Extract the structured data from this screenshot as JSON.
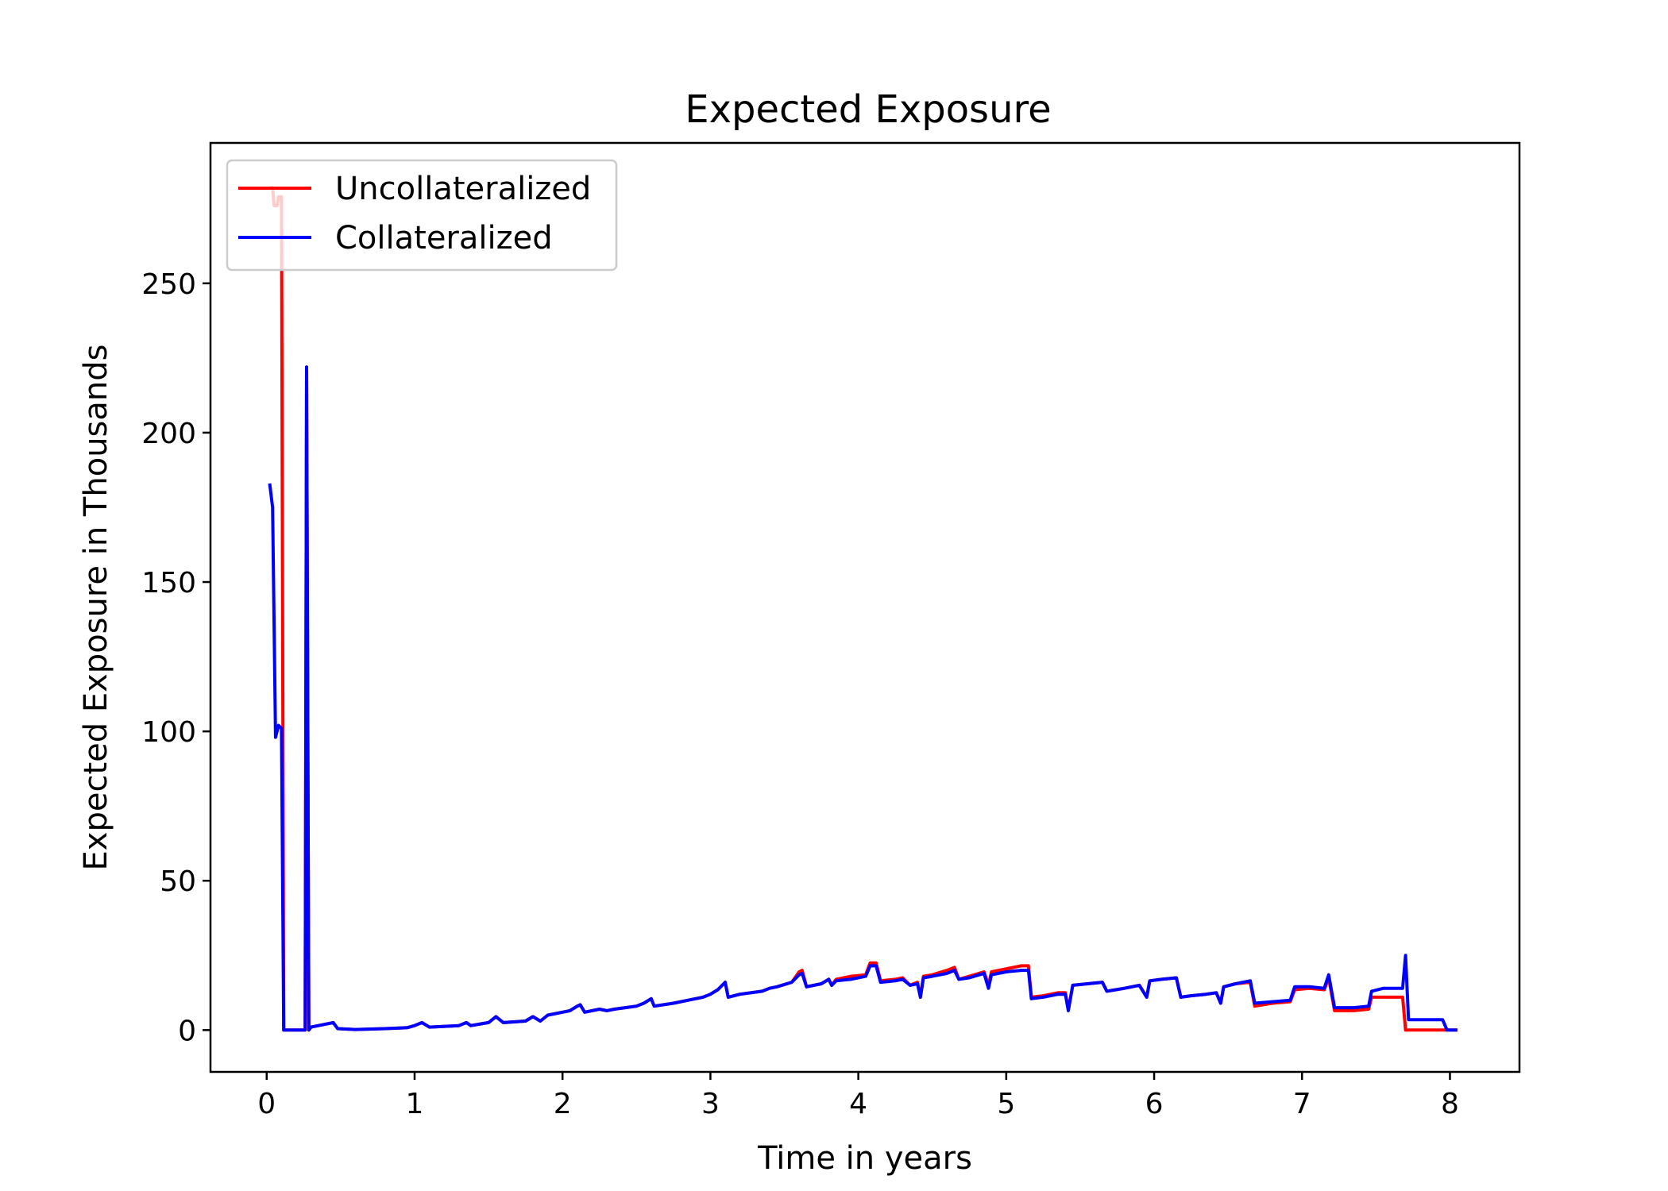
{
  "chart_data": {
    "type": "line",
    "title": "Expected Exposure",
    "xlabel": "Time in years",
    "ylabel": "Expected Exposure in Thousands",
    "xlim": [
      -0.38,
      8.47
    ],
    "ylim": [
      -14,
      297
    ],
    "xticks": [
      0,
      1,
      2,
      3,
      4,
      5,
      6,
      7,
      8
    ],
    "yticks": [
      0,
      50,
      100,
      150,
      200,
      250
    ],
    "grid": false,
    "legend_position": "upper left",
    "series": [
      {
        "name": "Uncollateralized",
        "color": "#ff0000",
        "points": [
          [
            0.02,
            282
          ],
          [
            0.04,
            282
          ],
          [
            0.05,
            276
          ],
          [
            0.07,
            276
          ],
          [
            0.08,
            279
          ],
          [
            0.09,
            279
          ],
          [
            0.1,
            279
          ],
          [
            0.115,
            0
          ],
          [
            0.25,
            0
          ],
          [
            0.26,
            0
          ],
          [
            0.27,
            222
          ],
          [
            0.285,
            0
          ],
          [
            0.3,
            1
          ],
          [
            0.35,
            1.5
          ],
          [
            0.4,
            2
          ],
          [
            0.45,
            2.5
          ],
          [
            0.48,
            0.5
          ],
          [
            0.6,
            0.2
          ],
          [
            0.8,
            0.5
          ],
          [
            0.95,
            0.8
          ],
          [
            1.0,
            1.5
          ],
          [
            1.05,
            2.5
          ],
          [
            1.1,
            1
          ],
          [
            1.3,
            1.5
          ],
          [
            1.35,
            2.5
          ],
          [
            1.38,
            1.5
          ],
          [
            1.5,
            2.5
          ],
          [
            1.55,
            4.5
          ],
          [
            1.6,
            2.5
          ],
          [
            1.75,
            3
          ],
          [
            1.8,
            4.5
          ],
          [
            1.85,
            3
          ],
          [
            1.9,
            5
          ],
          [
            2.0,
            6
          ],
          [
            2.05,
            6.5
          ],
          [
            2.1,
            8
          ],
          [
            2.12,
            8.5
          ],
          [
            2.15,
            6
          ],
          [
            2.25,
            7
          ],
          [
            2.3,
            6.5
          ],
          [
            2.35,
            7
          ],
          [
            2.5,
            8
          ],
          [
            2.55,
            9
          ],
          [
            2.6,
            10.5
          ],
          [
            2.62,
            8
          ],
          [
            2.75,
            9
          ],
          [
            2.85,
            10
          ],
          [
            2.95,
            11
          ],
          [
            3.0,
            12
          ],
          [
            3.05,
            13.5
          ],
          [
            3.1,
            16
          ],
          [
            3.12,
            11
          ],
          [
            3.2,
            12
          ],
          [
            3.35,
            13
          ],
          [
            3.4,
            14
          ],
          [
            3.45,
            14.5
          ],
          [
            3.55,
            16
          ],
          [
            3.6,
            19.5
          ],
          [
            3.62,
            20
          ],
          [
            3.65,
            14.5
          ],
          [
            3.75,
            15.5
          ],
          [
            3.8,
            17
          ],
          [
            3.82,
            15
          ],
          [
            3.85,
            17
          ],
          [
            3.95,
            18
          ],
          [
            4.05,
            18.5
          ],
          [
            4.08,
            22.5
          ],
          [
            4.12,
            22.5
          ],
          [
            4.15,
            16.5
          ],
          [
            4.25,
            17
          ],
          [
            4.3,
            17.5
          ],
          [
            4.35,
            15
          ],
          [
            4.4,
            16
          ],
          [
            4.42,
            11
          ],
          [
            4.44,
            18
          ],
          [
            4.5,
            18.5
          ],
          [
            4.6,
            20
          ],
          [
            4.65,
            21
          ],
          [
            4.68,
            17
          ],
          [
            4.75,
            18
          ],
          [
            4.85,
            19.5
          ],
          [
            4.88,
            15
          ],
          [
            4.9,
            19.5
          ],
          [
            5.0,
            20.5
          ],
          [
            5.1,
            21.5
          ],
          [
            5.15,
            21.5
          ],
          [
            5.17,
            11
          ],
          [
            5.25,
            11.5
          ],
          [
            5.35,
            12.5
          ],
          [
            5.4,
            12.5
          ],
          [
            5.42,
            7
          ],
          [
            5.45,
            15
          ],
          [
            5.55,
            15.5
          ],
          [
            5.65,
            16
          ],
          [
            5.68,
            13
          ],
          [
            5.8,
            14
          ],
          [
            5.9,
            15
          ],
          [
            5.95,
            11
          ],
          [
            5.97,
            16.5
          ],
          [
            6.05,
            17
          ],
          [
            6.15,
            17.5
          ],
          [
            6.18,
            11
          ],
          [
            6.25,
            11.5
          ],
          [
            6.35,
            12
          ],
          [
            6.42,
            12.5
          ],
          [
            6.45,
            9
          ],
          [
            6.47,
            14.5
          ],
          [
            6.55,
            15.5
          ],
          [
            6.65,
            16
          ],
          [
            6.68,
            8
          ],
          [
            6.8,
            9
          ],
          [
            6.92,
            9.5
          ],
          [
            6.95,
            13.5
          ],
          [
            7.05,
            14
          ],
          [
            7.15,
            13.5
          ],
          [
            7.18,
            17.5
          ],
          [
            7.22,
            6.5
          ],
          [
            7.35,
            6.5
          ],
          [
            7.45,
            7
          ],
          [
            7.47,
            11
          ],
          [
            7.55,
            11
          ],
          [
            7.68,
            11
          ],
          [
            7.7,
            0
          ],
          [
            7.85,
            0
          ],
          [
            7.98,
            0
          ],
          [
            8.05,
            0
          ]
        ]
      },
      {
        "name": "Collateralized",
        "color": "#0000ff",
        "points": [
          [
            0.02,
            183
          ],
          [
            0.04,
            175
          ],
          [
            0.06,
            98
          ],
          [
            0.08,
            102
          ],
          [
            0.1,
            101
          ],
          [
            0.115,
            0
          ],
          [
            0.25,
            0
          ],
          [
            0.26,
            0
          ],
          [
            0.27,
            222
          ],
          [
            0.285,
            0
          ],
          [
            0.3,
            1
          ],
          [
            0.35,
            1.5
          ],
          [
            0.4,
            2
          ],
          [
            0.45,
            2.5
          ],
          [
            0.48,
            0.5
          ],
          [
            0.6,
            0.2
          ],
          [
            0.8,
            0.5
          ],
          [
            0.95,
            0.8
          ],
          [
            1.0,
            1.5
          ],
          [
            1.05,
            2.5
          ],
          [
            1.1,
            1
          ],
          [
            1.3,
            1.5
          ],
          [
            1.35,
            2.5
          ],
          [
            1.38,
            1.5
          ],
          [
            1.5,
            2.5
          ],
          [
            1.55,
            4.5
          ],
          [
            1.6,
            2.5
          ],
          [
            1.75,
            3
          ],
          [
            1.8,
            4.5
          ],
          [
            1.85,
            3
          ],
          [
            1.9,
            5
          ],
          [
            2.0,
            6
          ],
          [
            2.05,
            6.5
          ],
          [
            2.1,
            8
          ],
          [
            2.12,
            8.5
          ],
          [
            2.15,
            6
          ],
          [
            2.25,
            7
          ],
          [
            2.3,
            6.5
          ],
          [
            2.35,
            7
          ],
          [
            2.5,
            8
          ],
          [
            2.55,
            9
          ],
          [
            2.6,
            10.5
          ],
          [
            2.62,
            8
          ],
          [
            2.75,
            9
          ],
          [
            2.85,
            10
          ],
          [
            2.95,
            11
          ],
          [
            3.0,
            12
          ],
          [
            3.05,
            13.5
          ],
          [
            3.1,
            16
          ],
          [
            3.12,
            11
          ],
          [
            3.2,
            12
          ],
          [
            3.35,
            13
          ],
          [
            3.4,
            14
          ],
          [
            3.45,
            14.5
          ],
          [
            3.55,
            16
          ],
          [
            3.6,
            18.5
          ],
          [
            3.62,
            19
          ],
          [
            3.65,
            14.5
          ],
          [
            3.75,
            15.5
          ],
          [
            3.8,
            17
          ],
          [
            3.82,
            15
          ],
          [
            3.85,
            16.5
          ],
          [
            3.95,
            17
          ],
          [
            4.05,
            18
          ],
          [
            4.08,
            21.5
          ],
          [
            4.12,
            21.5
          ],
          [
            4.15,
            16
          ],
          [
            4.25,
            16.5
          ],
          [
            4.3,
            17
          ],
          [
            4.35,
            15
          ],
          [
            4.4,
            15.5
          ],
          [
            4.42,
            11
          ],
          [
            4.44,
            17.5
          ],
          [
            4.5,
            18
          ],
          [
            4.6,
            19
          ],
          [
            4.65,
            20
          ],
          [
            4.68,
            17
          ],
          [
            4.75,
            17.5
          ],
          [
            4.85,
            19
          ],
          [
            4.88,
            14
          ],
          [
            4.9,
            18.5
          ],
          [
            5.0,
            19.5
          ],
          [
            5.1,
            20
          ],
          [
            5.15,
            20
          ],
          [
            5.17,
            10.5
          ],
          [
            5.25,
            11
          ],
          [
            5.35,
            12
          ],
          [
            5.4,
            12
          ],
          [
            5.42,
            6.5
          ],
          [
            5.45,
            15
          ],
          [
            5.55,
            15.5
          ],
          [
            5.65,
            16
          ],
          [
            5.68,
            13
          ],
          [
            5.8,
            14
          ],
          [
            5.9,
            15
          ],
          [
            5.95,
            11
          ],
          [
            5.97,
            16.5
          ],
          [
            6.05,
            17
          ],
          [
            6.15,
            17.5
          ],
          [
            6.18,
            11
          ],
          [
            6.25,
            11.5
          ],
          [
            6.35,
            12
          ],
          [
            6.42,
            12.5
          ],
          [
            6.45,
            9
          ],
          [
            6.47,
            14.5
          ],
          [
            6.55,
            15.5
          ],
          [
            6.65,
            16.5
          ],
          [
            6.68,
            9
          ],
          [
            6.8,
            9.5
          ],
          [
            6.92,
            10
          ],
          [
            6.95,
            14.5
          ],
          [
            7.05,
            14.5
          ],
          [
            7.15,
            14
          ],
          [
            7.18,
            18.5
          ],
          [
            7.22,
            7.5
          ],
          [
            7.35,
            7.5
          ],
          [
            7.45,
            8
          ],
          [
            7.47,
            13
          ],
          [
            7.55,
            14
          ],
          [
            7.68,
            14
          ],
          [
            7.7,
            25
          ],
          [
            7.72,
            3.5
          ],
          [
            7.85,
            3.5
          ],
          [
            7.95,
            3.5
          ],
          [
            7.98,
            0
          ],
          [
            8.05,
            0
          ]
        ]
      }
    ]
  }
}
